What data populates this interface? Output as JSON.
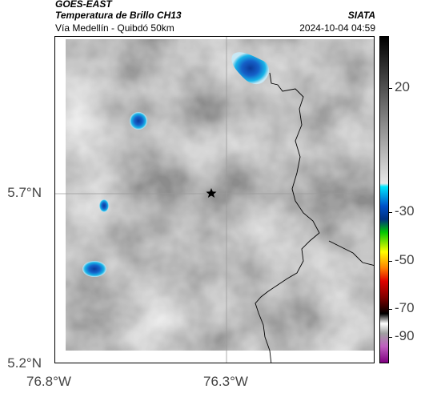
{
  "header": {
    "satellite": "GOES-EAST",
    "product": "Temperatura de Brillo CH13",
    "region": "Vía Medellín - Quibdó 50km",
    "organization": "SIATA",
    "timestamp": "2024-10-04 04:59"
  },
  "map": {
    "lat_ticks": [
      {
        "label": "5.7°N",
        "value": 5.7
      },
      {
        "label": "5.2°N",
        "value": 5.2
      }
    ],
    "lon_ticks": [
      {
        "label": "76.8°W",
        "value": -76.8
      },
      {
        "label": "76.3°W",
        "value": -76.3
      }
    ],
    "marker": "star-icon",
    "colors": {
      "cold_cloud_core": "#1560c8",
      "cold_cloud_edge": "#18b4e8",
      "border_line": "#000000",
      "gridline": "#9a9a9a"
    }
  },
  "colorbar": {
    "ticks": [
      {
        "label": "20",
        "value": 20
      },
      {
        "label": "-30",
        "value": -30
      },
      {
        "label": "-50",
        "value": -50
      },
      {
        "label": "-70",
        "value": -70
      },
      {
        "label": "-90",
        "value": -90
      }
    ],
    "range": [
      -95,
      45
    ]
  }
}
